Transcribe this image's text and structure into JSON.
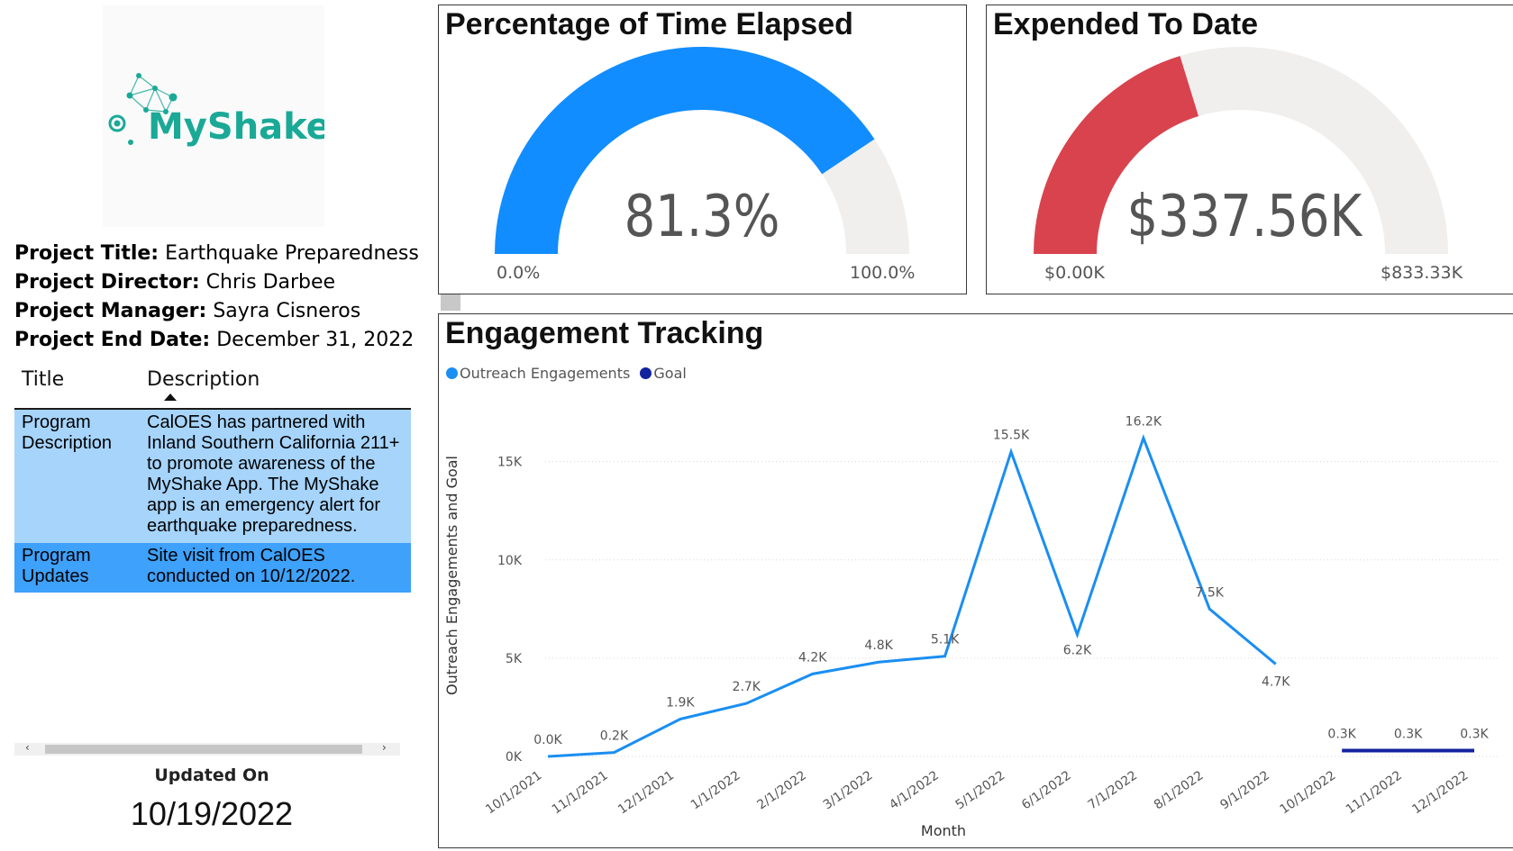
{
  "logo": {
    "text": "MyShake",
    "color": "#1aa997",
    "icon": "seismic-network-icon"
  },
  "project": {
    "title_label": "Project Title:",
    "title_value": "Earthquake Preparedness",
    "director_label": "Project Director:",
    "director_value": "Chris Darbee",
    "manager_label": "Project Manager:",
    "manager_value": "Sayra Cisneros",
    "end_label": "Project End Date:",
    "end_value": "December 31, 2022"
  },
  "table": {
    "headers": [
      "Title",
      "Description"
    ],
    "sorted_column": "Description",
    "rows": [
      {
        "title": "Program Description",
        "description": "CalOES has partnered with Inland Southern California 211+ to promote awareness of the MyShake App. The MyShake app is an emergency alert for earthquake preparedness."
      },
      {
        "title": "Program Updates",
        "description": "Site visit from CalOES conducted on 10/12/2022."
      }
    ]
  },
  "scrollbar": {
    "left_glyph": "‹",
    "right_glyph": "›"
  },
  "updated": {
    "label": "Updated On",
    "date": "10/19/2022"
  },
  "gauge_time": {
    "title": "Percentage of Time Elapsed",
    "value_text": "81.3%",
    "fraction": 0.813,
    "min_text": "0.0%",
    "max_text": "100.0%",
    "fill_color": "#118dff",
    "track_color": "#f0efee"
  },
  "gauge_spent": {
    "title": "Expended To Date",
    "value_text": "$337.56K",
    "fraction": 0.4051,
    "min_text": "$0.00K",
    "max_text": "$833.33K",
    "fill_color": "#d9434d",
    "track_color": "#f0efee"
  },
  "engagement": {
    "title": "Engagement Tracking",
    "legend": [
      {
        "name": "Outreach Engagements",
        "color": "#1a8ef2"
      },
      {
        "name": "Goal",
        "color": "#12239e"
      }
    ],
    "xlabel": "Month",
    "ylabel": "Outreach Engagements and Goal"
  },
  "chart_data": {
    "type": "line",
    "title": "Engagement Tracking",
    "xlabel": "Month",
    "ylabel": "Outreach Engagements and Goal",
    "ylim": [
      0,
      17000
    ],
    "yticks": [
      0,
      5000,
      10000,
      15000
    ],
    "ytick_labels": [
      "0K",
      "5K",
      "10K",
      "15K"
    ],
    "grid": true,
    "legend_position": "top-left",
    "categories": [
      "10/1/2021",
      "11/1/2021",
      "12/1/2021",
      "1/1/2022",
      "2/1/2022",
      "3/1/2022",
      "4/1/2022",
      "5/1/2022",
      "6/1/2022",
      "7/1/2022",
      "8/1/2022",
      "9/1/2022",
      "10/1/2022",
      "11/1/2022",
      "12/1/2022"
    ],
    "series": [
      {
        "name": "Outreach Engagements",
        "color": "#1a8ef2",
        "values": [
          0,
          200,
          1900,
          2700,
          4200,
          4800,
          5100,
          15500,
          6200,
          16200,
          7500,
          4700,
          null,
          null,
          null
        ],
        "labels": [
          "0.0K",
          "0.2K",
          "1.9K",
          "2.7K",
          "4.2K",
          "4.8K",
          "5.1K",
          "15.5K",
          "6.2K",
          "16.2K",
          "7.5K",
          "4.7K",
          "",
          "",
          ""
        ]
      },
      {
        "name": "Goal",
        "color": "#12239e",
        "values": [
          null,
          null,
          null,
          null,
          null,
          null,
          null,
          null,
          null,
          null,
          null,
          null,
          300,
          300,
          300
        ],
        "labels": [
          "",
          "",
          "",
          "",
          "",
          "",
          "",
          "",
          "",
          "",
          "",
          "",
          "0.3K",
          "0.3K",
          "0.3K"
        ]
      }
    ]
  }
}
